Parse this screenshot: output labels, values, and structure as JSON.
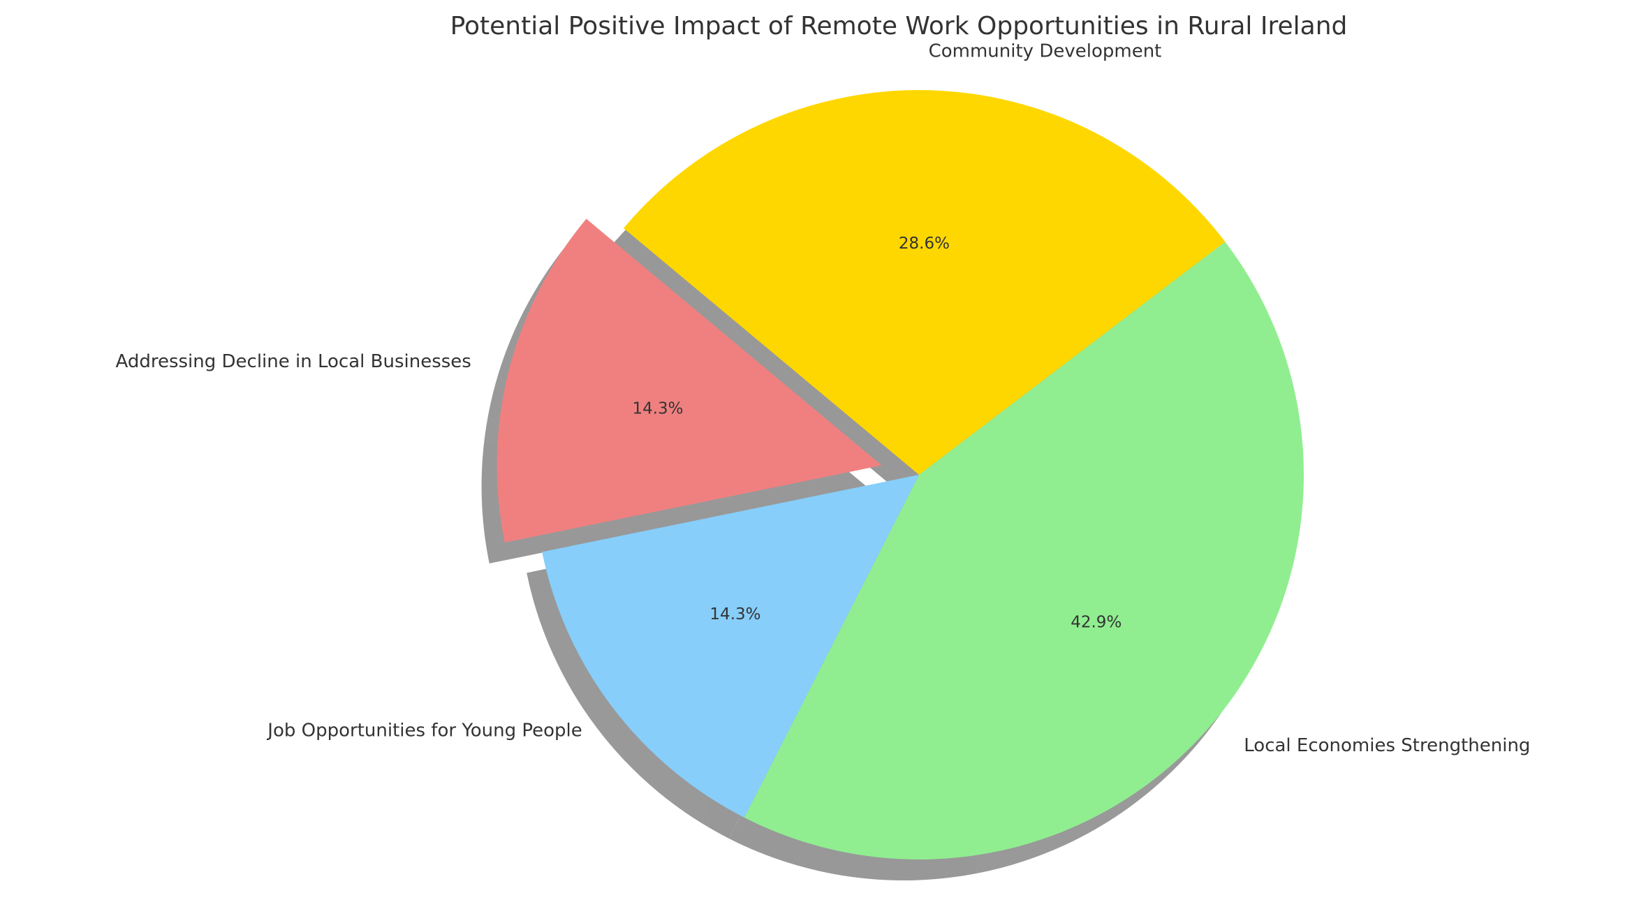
{
  "chart_data": {
    "type": "pie",
    "title": "Potential Positive Impact of Remote Work Opportunities in Rural Ireland",
    "categories": [
      "Local Economies Strengthening",
      "Community Development",
      "Addressing Decline in Local Businesses",
      "Job Opportunities for Young People"
    ],
    "values": [
      42.9,
      28.6,
      14.3,
      14.3
    ],
    "value_labels": [
      "42.9%",
      "28.6%",
      "14.3%",
      "14.3%"
    ],
    "colors": [
      "#90ee90",
      "#ffd700",
      "#f08080",
      "#87cefa"
    ],
    "explode": [
      0,
      0,
      0.1,
      0
    ],
    "shadow": true
  }
}
